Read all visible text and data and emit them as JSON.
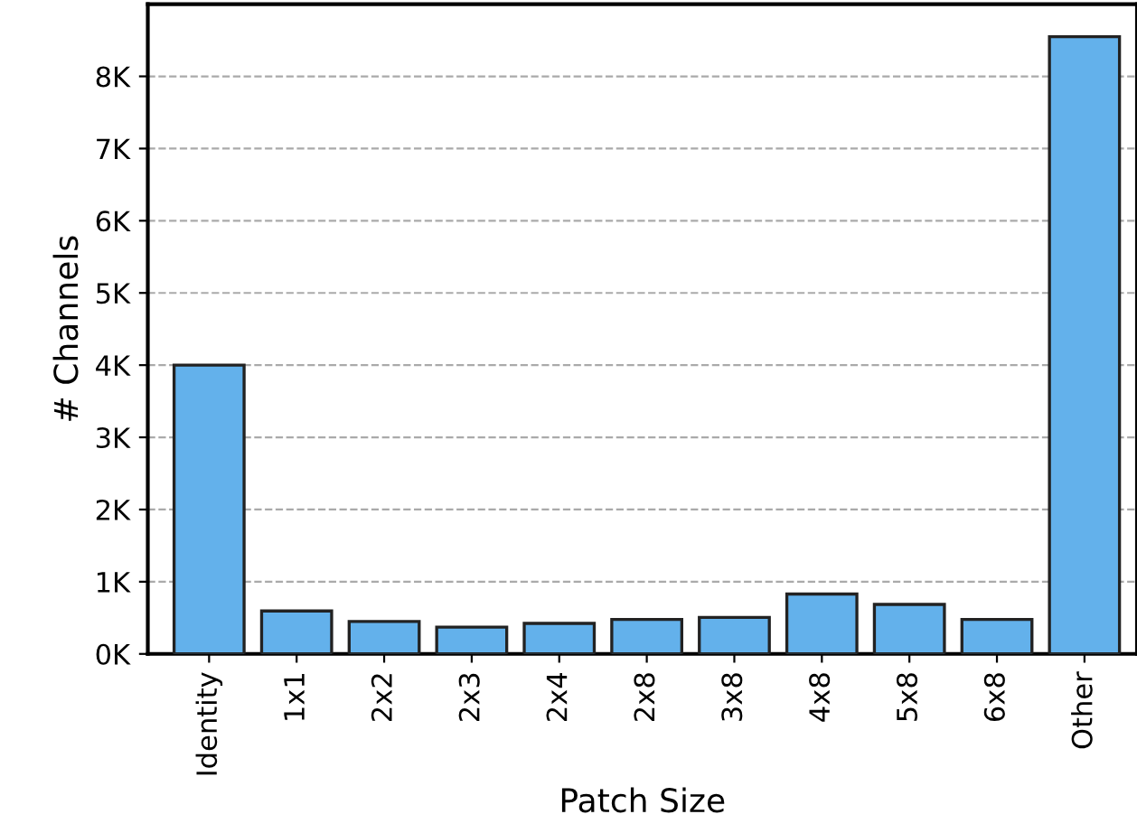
{
  "chart_data": {
    "type": "bar",
    "xlabel": "Patch Size",
    "ylabel": "# Channels",
    "categories": [
      "Identity",
      "1x1",
      "2x2",
      "2x3",
      "2x4",
      "2x8",
      "3x8",
      "4x8",
      "5x8",
      "6x8",
      "Other"
    ],
    "values": [
      4000,
      595,
      450,
      370,
      423,
      477,
      505,
      829,
      685,
      477,
      8550
    ],
    "color": "#63b1eb",
    "ylim": [
      0,
      9000
    ],
    "yticks": [
      {
        "value": 0,
        "label": "0K"
      },
      {
        "value": 1000,
        "label": "1K"
      },
      {
        "value": 2000,
        "label": "2K"
      },
      {
        "value": 3000,
        "label": "3K"
      },
      {
        "value": 4000,
        "label": "4K"
      },
      {
        "value": 5000,
        "label": "5K"
      },
      {
        "value": 6000,
        "label": "6K"
      },
      {
        "value": 7000,
        "label": "7K"
      },
      {
        "value": 8000,
        "label": "8K"
      }
    ],
    "grid": "y"
  }
}
